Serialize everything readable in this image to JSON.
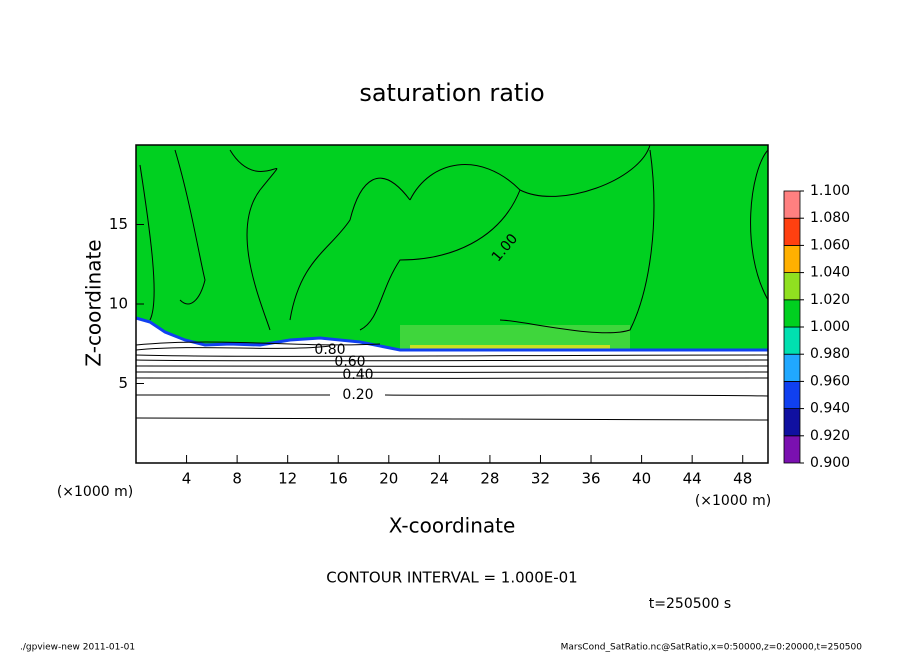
{
  "chart_data": {
    "type": "contour",
    "title": "saturation ratio",
    "xlabel": "X-coordinate",
    "ylabel": "Z-coordinate",
    "x_unit": "(×1000 m)",
    "y_unit": "(×1000 m)",
    "xlim": [
      0,
      50
    ],
    "xticks": [
      4,
      8,
      12,
      16,
      20,
      24,
      28,
      32,
      36,
      40,
      44,
      48
    ],
    "ylim": [
      0,
      20
    ],
    "yticks": [
      5,
      10,
      15
    ],
    "contour_labels": [
      {
        "value": 0.2,
        "label": "0.20"
      },
      {
        "value": 0.4,
        "label": "0.40"
      },
      {
        "value": 0.6,
        "label": "0.60"
      },
      {
        "value": 0.8,
        "label": "0.80"
      },
      {
        "value": 1.0,
        "label": "1.00"
      }
    ],
    "contour_interval": "CONTOUR INTERVAL = 1.000E-01",
    "time_label": "t=250500 s",
    "colorbar": {
      "clim": [
        0.9,
        1.1
      ],
      "ticks": [
        {
          "value": 0.9,
          "label": "0.900"
        },
        {
          "value": 0.92,
          "label": "0.920"
        },
        {
          "value": 0.94,
          "label": "0.940"
        },
        {
          "value": 0.96,
          "label": "0.960"
        },
        {
          "value": 0.98,
          "label": "0.980"
        },
        {
          "value": 1.0,
          "label": "1.000"
        },
        {
          "value": 1.02,
          "label": "1.020"
        },
        {
          "value": 1.04,
          "label": "1.040"
        },
        {
          "value": 1.06,
          "label": "1.060"
        },
        {
          "value": 1.08,
          "label": "1.080"
        },
        {
          "value": 1.1,
          "label": "1.100"
        }
      ],
      "colors": [
        "#7a10b0",
        "#1010a0",
        "#1040f0",
        "#20a8ff",
        "#00e0b0",
        "#00d020",
        "#90e020",
        "#ffb000",
        "#ff4010",
        "#ff8080"
      ]
    },
    "footer_left": "./gpview-new  2011-01-01",
    "footer_right": "MarsCond_SatRatio.nc@SatRatio,x=0:50000,z=0:20000,t=250500"
  }
}
